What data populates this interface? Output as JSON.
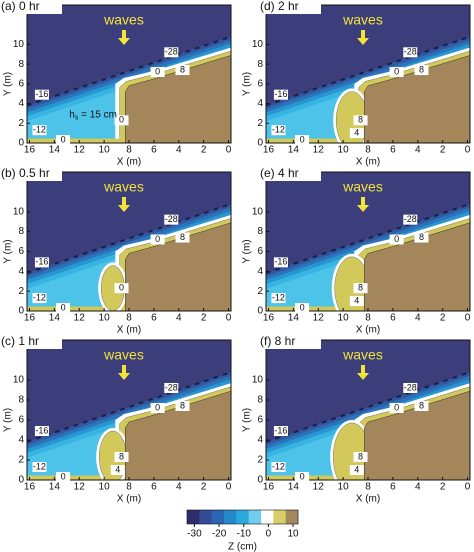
{
  "chart_data": [
    {
      "type": "contour",
      "title": "(a) 0 hr",
      "annotation": "waves",
      "note": [
        "h",
        "s",
        " = 15 cm"
      ],
      "xlabel": "X (m)",
      "ylabel": "Y (m)",
      "xlim": [
        16.2,
        -0.2
      ],
      "ylim": [
        0,
        14
      ],
      "xticks": [
        16,
        14,
        12,
        10,
        8,
        6,
        4,
        2,
        0
      ],
      "yticks": [
        0,
        2,
        4,
        6,
        8,
        10
      ],
      "contour_labels": [
        -28,
        -16,
        -12,
        0,
        0,
        8,
        0
      ]
    },
    {
      "type": "contour",
      "title": "(b) 0.5 hr",
      "annotation": "waves",
      "xlabel": "X (m)",
      "ylabel": "Y (m)",
      "xlim": [
        16.2,
        -0.2
      ],
      "ylim": [
        0,
        14
      ],
      "xticks": [
        16,
        14,
        12,
        10,
        8,
        6,
        4,
        2,
        0
      ],
      "yticks": [
        0,
        2,
        4,
        6,
        8,
        10
      ],
      "contour_labels": [
        -28,
        -16,
        -12,
        0,
        0,
        8,
        0
      ]
    },
    {
      "type": "contour",
      "title": "(c) 1 hr",
      "annotation": "waves",
      "xlabel": "X (m)",
      "ylabel": "Y (m)",
      "xlim": [
        16.2,
        -0.2
      ],
      "ylim": [
        0,
        14
      ],
      "xticks": [
        16,
        14,
        12,
        10,
        8,
        6,
        4,
        2,
        0
      ],
      "yticks": [
        0,
        2,
        4,
        6,
        8,
        10
      ],
      "contour_labels": [
        -28,
        -16,
        -12,
        0,
        0,
        8,
        8,
        4
      ]
    },
    {
      "type": "contour",
      "title": "(d) 2 hr",
      "annotation": "waves",
      "xlabel": "X (m)",
      "ylabel": "Y (m)",
      "xlim": [
        16.2,
        -0.2
      ],
      "ylim": [
        0,
        14
      ],
      "xticks": [
        16,
        14,
        12,
        10,
        8,
        6,
        4,
        2,
        0
      ],
      "yticks": [
        0,
        2,
        4,
        6,
        8,
        10
      ],
      "contour_labels": [
        -28,
        -16,
        -12,
        0,
        0,
        8,
        8,
        4
      ]
    },
    {
      "type": "contour",
      "title": "(e) 4 hr",
      "annotation": "waves",
      "xlabel": "X (m)",
      "ylabel": "Y (m)",
      "xlim": [
        16.2,
        -0.2
      ],
      "ylim": [
        0,
        14
      ],
      "xticks": [
        16,
        14,
        12,
        10,
        8,
        6,
        4,
        2,
        0
      ],
      "yticks": [
        0,
        2,
        4,
        6,
        8,
        10
      ],
      "contour_labels": [
        -28,
        -16,
        -12,
        0,
        0,
        8,
        8,
        4
      ]
    },
    {
      "type": "contour",
      "title": "(f) 8 hr",
      "annotation": "waves",
      "xlabel": "X (m)",
      "ylabel": "Y (m)",
      "xlim": [
        16.2,
        -0.2
      ],
      "ylim": [
        0,
        14
      ],
      "xticks": [
        16,
        14,
        12,
        10,
        8,
        6,
        4,
        2,
        0
      ],
      "yticks": [
        0,
        2,
        4,
        6,
        8,
        10
      ],
      "contour_labels": [
        -28,
        -16,
        -12,
        0,
        0,
        8,
        8,
        4
      ]
    },
    {
      "type": "colorbar",
      "xlabel": "Z (cm)",
      "xlim": [
        -33,
        12
      ],
      "xticks": [
        -30,
        -20,
        -10,
        0,
        10
      ],
      "colors": [
        "#2c2e6e",
        "#344a94",
        "#2a66b3",
        "#2388cc",
        "#2aaadc",
        "#70cdee",
        "#ffffff",
        "#d8cf6a",
        "#a38a5c"
      ]
    }
  ]
}
